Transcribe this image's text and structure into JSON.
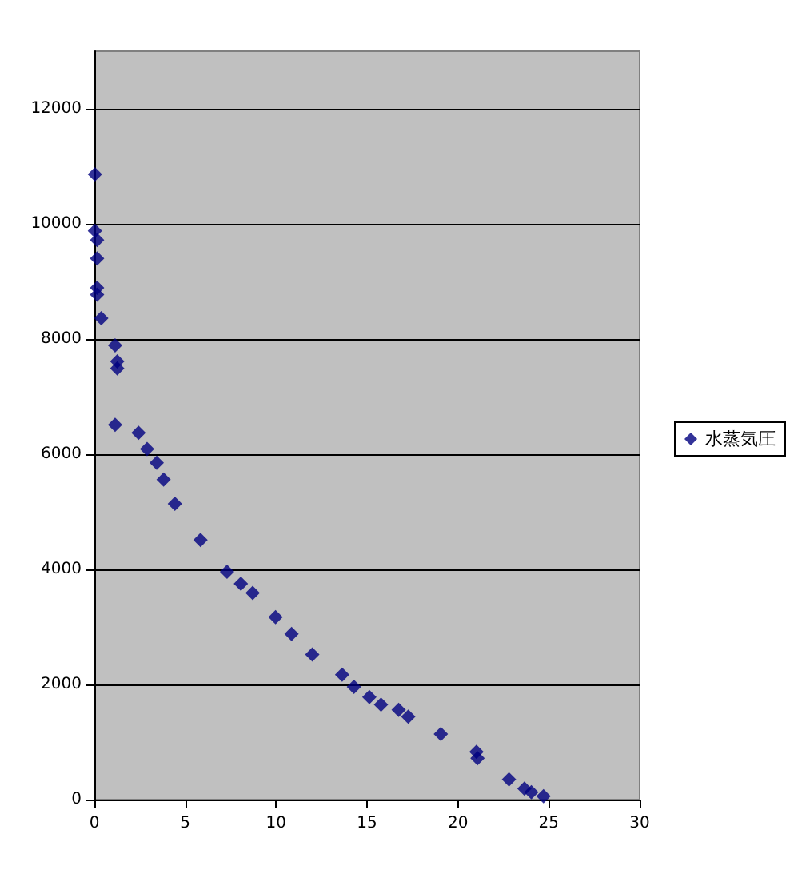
{
  "chart_data": {
    "type": "scatter",
    "marker": "diamond",
    "grid": "y",
    "legend": "right",
    "xlim": [
      0,
      30
    ],
    "xticks": [
      0,
      5,
      10,
      15,
      20,
      25,
      30
    ],
    "ylim": [
      0,
      13000
    ],
    "yticks": [
      0,
      2000,
      4000,
      6000,
      8000,
      10000,
      12000
    ],
    "series": [
      {
        "name": "水蒸気圧",
        "color": "#000080",
        "x": [
          0.03,
          0.03,
          0.15,
          0.15,
          0.15,
          0.15,
          0.38,
          1.14,
          1.26,
          1.26,
          1.14,
          2.43,
          2.9,
          3.43,
          3.81,
          4.43,
          5.84,
          7.3,
          8.06,
          8.71,
          9.97,
          10.85,
          11.99,
          13.63,
          14.28,
          15.13,
          15.77,
          16.74,
          17.27,
          19.06,
          21.02,
          21.08,
          22.81,
          23.66,
          24.04,
          24.71
        ],
        "values": [
          10860,
          9880,
          9720,
          9400,
          8890,
          8770,
          8360,
          7890,
          7610,
          7490,
          6510,
          6370,
          6090,
          5850,
          5560,
          5140,
          4510,
          3960,
          3750,
          3590,
          3170,
          2880,
          2520,
          2170,
          1960,
          1780,
          1650,
          1560,
          1440,
          1140,
          830,
          720,
          350,
          190,
          130,
          60
        ]
      }
    ]
  }
}
